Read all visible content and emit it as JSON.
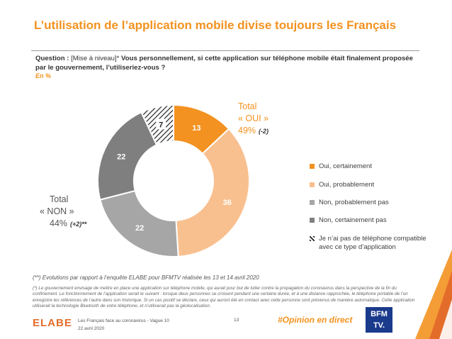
{
  "title": "L’utilisation de l’application mobile divise toujours les Français",
  "question": {
    "label": "Question :",
    "tag": "[Mise à niveau]*",
    "text": "Vous personnellement, si cette application sur téléphone mobile était finalement proposée par le gouvernement, l’utiliseriez-vous ?",
    "unit": "En %"
  },
  "totals": {
    "oui": {
      "label_line1": "Total",
      "label_line2": "« OUI »",
      "value": "49%",
      "evolution": "(-2)"
    },
    "non": {
      "label_line1": "Total",
      "label_line2": "« NON »",
      "value": "44%",
      "evolution": "(+2)**"
    }
  },
  "colors": {
    "oui_certainement": "#f39220",
    "oui_probablement": "#f9c08f",
    "non_probablement": "#a6a6a6",
    "non_certainement": "#7f7f7f",
    "pas_de_telephone": "#ffffff",
    "accent": "#f39220"
  },
  "chart_data": {
    "type": "pie",
    "donut": true,
    "categories": [
      "Oui, certainement",
      "Oui, probablement",
      "Non, probablement pas",
      "Non, certainement pas",
      "Je n’ai pas de téléphone compatible avec ce type d’application"
    ],
    "values": [
      13,
      36,
      22,
      22,
      7
    ],
    "value_labels": [
      "13",
      "36",
      "22",
      "22",
      "7"
    ],
    "unit": "%",
    "legend_position": "right",
    "last_slice_hatched": true
  },
  "footnotes": {
    "evolution": "(**) Evolutions par rapport à l’enquête ELABE pour BFMTV réalisée les 13 et 14 avril 2020",
    "context": "(*) Le gouvernement envisage de mettre en place une application sur téléphone mobile, qui aurait pour but de lutter contre la propagation du coronavirus dans la perspective de la fin du confinement. Le fonctionnement de l’application serait le suivant : lorsque deux personnes se croisent pendant une certaine durée, et à une distance rapprochée, le téléphone portable de l’un enregistre les références de l’autre dans son historique. Si un cas positif se déclare, ceux qui auront été en contact avec cette personne sont prévenus de manière automatique. Cette application utiliserait la technologie Bluetooth de votre téléphone, et n’utiliserait pas la géolocalisation."
  },
  "footer": {
    "logo": "ELABE",
    "study": "Les Français face au coronavirus - Vague 10",
    "date": "22 avril 2020",
    "page": "13",
    "hashtag": "#Opinion en direct",
    "partner_logo_line1": "BFM",
    "partner_logo_line2": "TV."
  }
}
